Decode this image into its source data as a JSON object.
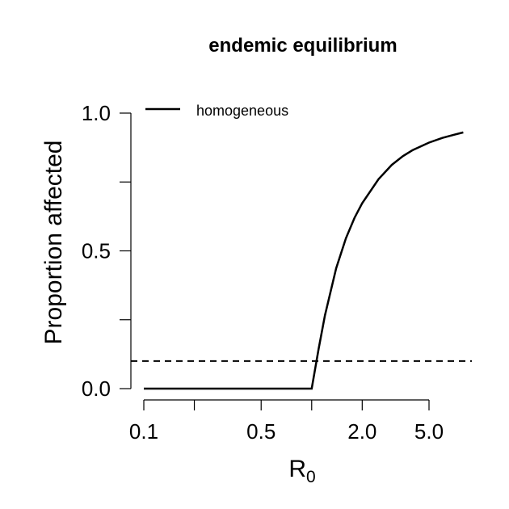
{
  "chart_data": {
    "type": "line",
    "title": "endemic equilibrium",
    "xlabel": "R",
    "xlabel_subscript": "0",
    "ylabel": "Proportion affected",
    "x_scale": "log",
    "xlim": [
      0.1,
      8
    ],
    "ylim": [
      0,
      1
    ],
    "x_ticks": [
      0.1,
      0.2,
      0.5,
      1.0,
      2.0,
      5.0
    ],
    "x_tick_labels": [
      "0.1",
      "",
      "0.5",
      "",
      "2.0",
      "5.0"
    ],
    "y_ticks": [
      0,
      0.25,
      0.5,
      0.75,
      1.0
    ],
    "y_tick_labels": [
      "0.0",
      "",
      "0.5",
      "",
      "1.0"
    ],
    "legend": {
      "position": "top-left",
      "entries": [
        "homogeneous"
      ]
    },
    "series": [
      {
        "name": "homogeneous",
        "style": "solid",
        "x": [
          0.1,
          0.2,
          0.5,
          1.0,
          1.1,
          1.2,
          1.4,
          1.6,
          1.8,
          2.0,
          2.5,
          3.0,
          3.5,
          4.0,
          5.0,
          6.0,
          7.0,
          8.0
        ],
        "y": [
          0,
          0,
          0,
          0,
          0.145,
          0.266,
          0.437,
          0.546,
          0.62,
          0.673,
          0.76,
          0.812,
          0.844,
          0.866,
          0.893,
          0.91,
          0.921,
          0.93
        ]
      }
    ],
    "reference_lines": [
      {
        "orientation": "horizontal",
        "y": 0.1,
        "style": "dashed"
      }
    ]
  }
}
